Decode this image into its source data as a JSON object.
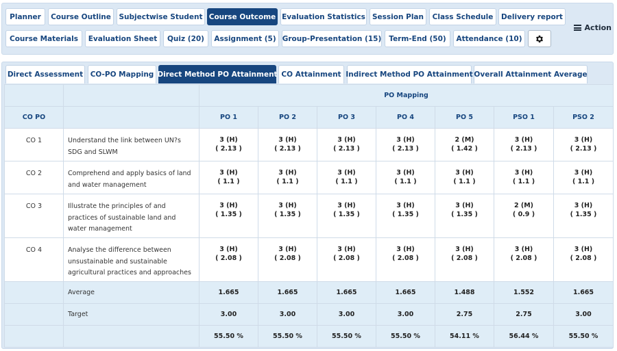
{
  "nav": {
    "row1": [
      "Planner",
      "Course Outline",
      "Subjectwise Student",
      "Course Outcome",
      "Evaluation Statistics",
      "Session Plan",
      "Class Schedule",
      "Delivery report"
    ],
    "row2": [
      "Course Materials",
      "Evaluation Sheet",
      "Quiz (20)",
      "Assignment (5)",
      "Group-Presentation (15)",
      "Term-End (50)",
      "Attendance (10)"
    ],
    "active": "Course Outcome",
    "settings_icon": "gear-icon",
    "action_label": "Action",
    "action_icon": "hamburger-icon"
  },
  "subtabs": {
    "items": [
      "Direct Assessment",
      "CO-PO Mapping",
      "Direct Method PO Attainment",
      "CO Attainment",
      "Indirect Method PO Attainment",
      "Overall Attainment Average"
    ],
    "active": "Direct Method PO Attainment"
  },
  "table": {
    "group_header": "PO Mapping",
    "co_header": "CO PO",
    "po_headers": [
      "PO 1",
      "PO 2",
      "PO 3",
      "PO 4",
      "PO 5",
      "PSO 1",
      "PSO 2"
    ],
    "rows": [
      {
        "co": "CO 1",
        "desc": "Understand the link between UN?s SDG and SLWM",
        "vals": [
          [
            "3 (H)",
            "( 2.13 )"
          ],
          [
            "3 (H)",
            "( 2.13 )"
          ],
          [
            "3 (H)",
            "( 2.13 )"
          ],
          [
            "3 (H)",
            "( 2.13 )"
          ],
          [
            "2 (M)",
            "( 1.42 )"
          ],
          [
            "3 (H)",
            "( 2.13 )"
          ],
          [
            "3 (H)",
            "( 2.13 )"
          ]
        ]
      },
      {
        "co": "CO 2",
        "desc": "Comprehend and apply basics of land and water management",
        "vals": [
          [
            "3 (H)",
            "( 1.1 )"
          ],
          [
            "3 (H)",
            "( 1.1 )"
          ],
          [
            "3 (H)",
            "( 1.1 )"
          ],
          [
            "3 (H)",
            "( 1.1 )"
          ],
          [
            "3 (H)",
            "( 1.1 )"
          ],
          [
            "3 (H)",
            "( 1.1 )"
          ],
          [
            "3 (H)",
            "( 1.1 )"
          ]
        ]
      },
      {
        "co": "CO 3",
        "desc": "Illustrate the principles of and practices of sustainable land and water management",
        "vals": [
          [
            "3 (H)",
            "( 1.35 )"
          ],
          [
            "3 (H)",
            "( 1.35 )"
          ],
          [
            "3 (H)",
            "( 1.35 )"
          ],
          [
            "3 (H)",
            "( 1.35 )"
          ],
          [
            "3 (H)",
            "( 1.35 )"
          ],
          [
            "2 (M)",
            "( 0.9 )"
          ],
          [
            "3 (H)",
            "( 1.35 )"
          ]
        ]
      },
      {
        "co": "CO 4",
        "desc": "Analyse the difference between unsustainable and sustainable agricultural practices and approaches",
        "vals": [
          [
            "3 (H)",
            "( 2.08 )"
          ],
          [
            "3 (H)",
            "( 2.08 )"
          ],
          [
            "3 (H)",
            "( 2.08 )"
          ],
          [
            "3 (H)",
            "( 2.08 )"
          ],
          [
            "3 (H)",
            "( 2.08 )"
          ],
          [
            "3 (H)",
            "( 2.08 )"
          ],
          [
            "3 (H)",
            "( 2.08 )"
          ]
        ]
      }
    ],
    "summary": [
      {
        "label": "Average",
        "vals": [
          "1.665",
          "1.665",
          "1.665",
          "1.665",
          "1.488",
          "1.552",
          "1.665"
        ]
      },
      {
        "label": "Target",
        "vals": [
          "3.00",
          "3.00",
          "3.00",
          "3.00",
          "2.75",
          "2.75",
          "3.00"
        ]
      },
      {
        "label": "",
        "vals": [
          "55.50 %",
          "55.50 %",
          "55.50 %",
          "55.50 %",
          "54.11 %",
          "56.44 %",
          "55.50 %"
        ]
      }
    ]
  }
}
